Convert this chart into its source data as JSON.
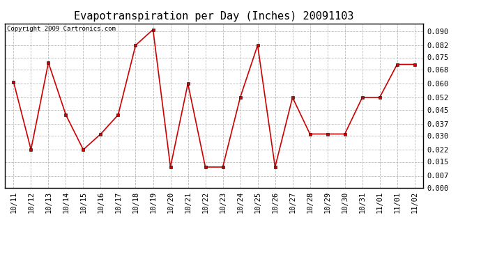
{
  "title": "Evapotranspiration per Day (Inches) 20091103",
  "copyright_text": "Copyright 2009 Cartronics.com",
  "x_labels": [
    "10/11",
    "10/12",
    "10/13",
    "10/14",
    "10/15",
    "10/16",
    "10/17",
    "10/18",
    "10/19",
    "10/20",
    "10/21",
    "10/22",
    "10/23",
    "10/24",
    "10/25",
    "10/26",
    "10/27",
    "10/28",
    "10/29",
    "10/30",
    "10/31",
    "11/01",
    "11/01",
    "11/02"
  ],
  "y_values": [
    0.061,
    0.022,
    0.072,
    0.042,
    0.022,
    0.031,
    0.042,
    0.082,
    0.091,
    0.012,
    0.06,
    0.012,
    0.012,
    0.052,
    0.082,
    0.012,
    0.052,
    0.031,
    0.031,
    0.031,
    0.052,
    0.052,
    0.071,
    0.071
  ],
  "line_color": "#cc0000",
  "marker": "s",
  "marker_size": 2.5,
  "line_width": 1.2,
  "ylim": [
    0.0,
    0.0945
  ],
  "yticks": [
    0.0,
    0.007,
    0.015,
    0.022,
    0.03,
    0.037,
    0.045,
    0.052,
    0.06,
    0.068,
    0.075,
    0.082,
    0.09
  ],
  "bg_color": "#ffffff",
  "plot_bg_color": "#ffffff",
  "grid_color": "#bbbbbb",
  "title_fontsize": 11,
  "tick_fontsize": 7.5,
  "copyright_fontsize": 6.5
}
